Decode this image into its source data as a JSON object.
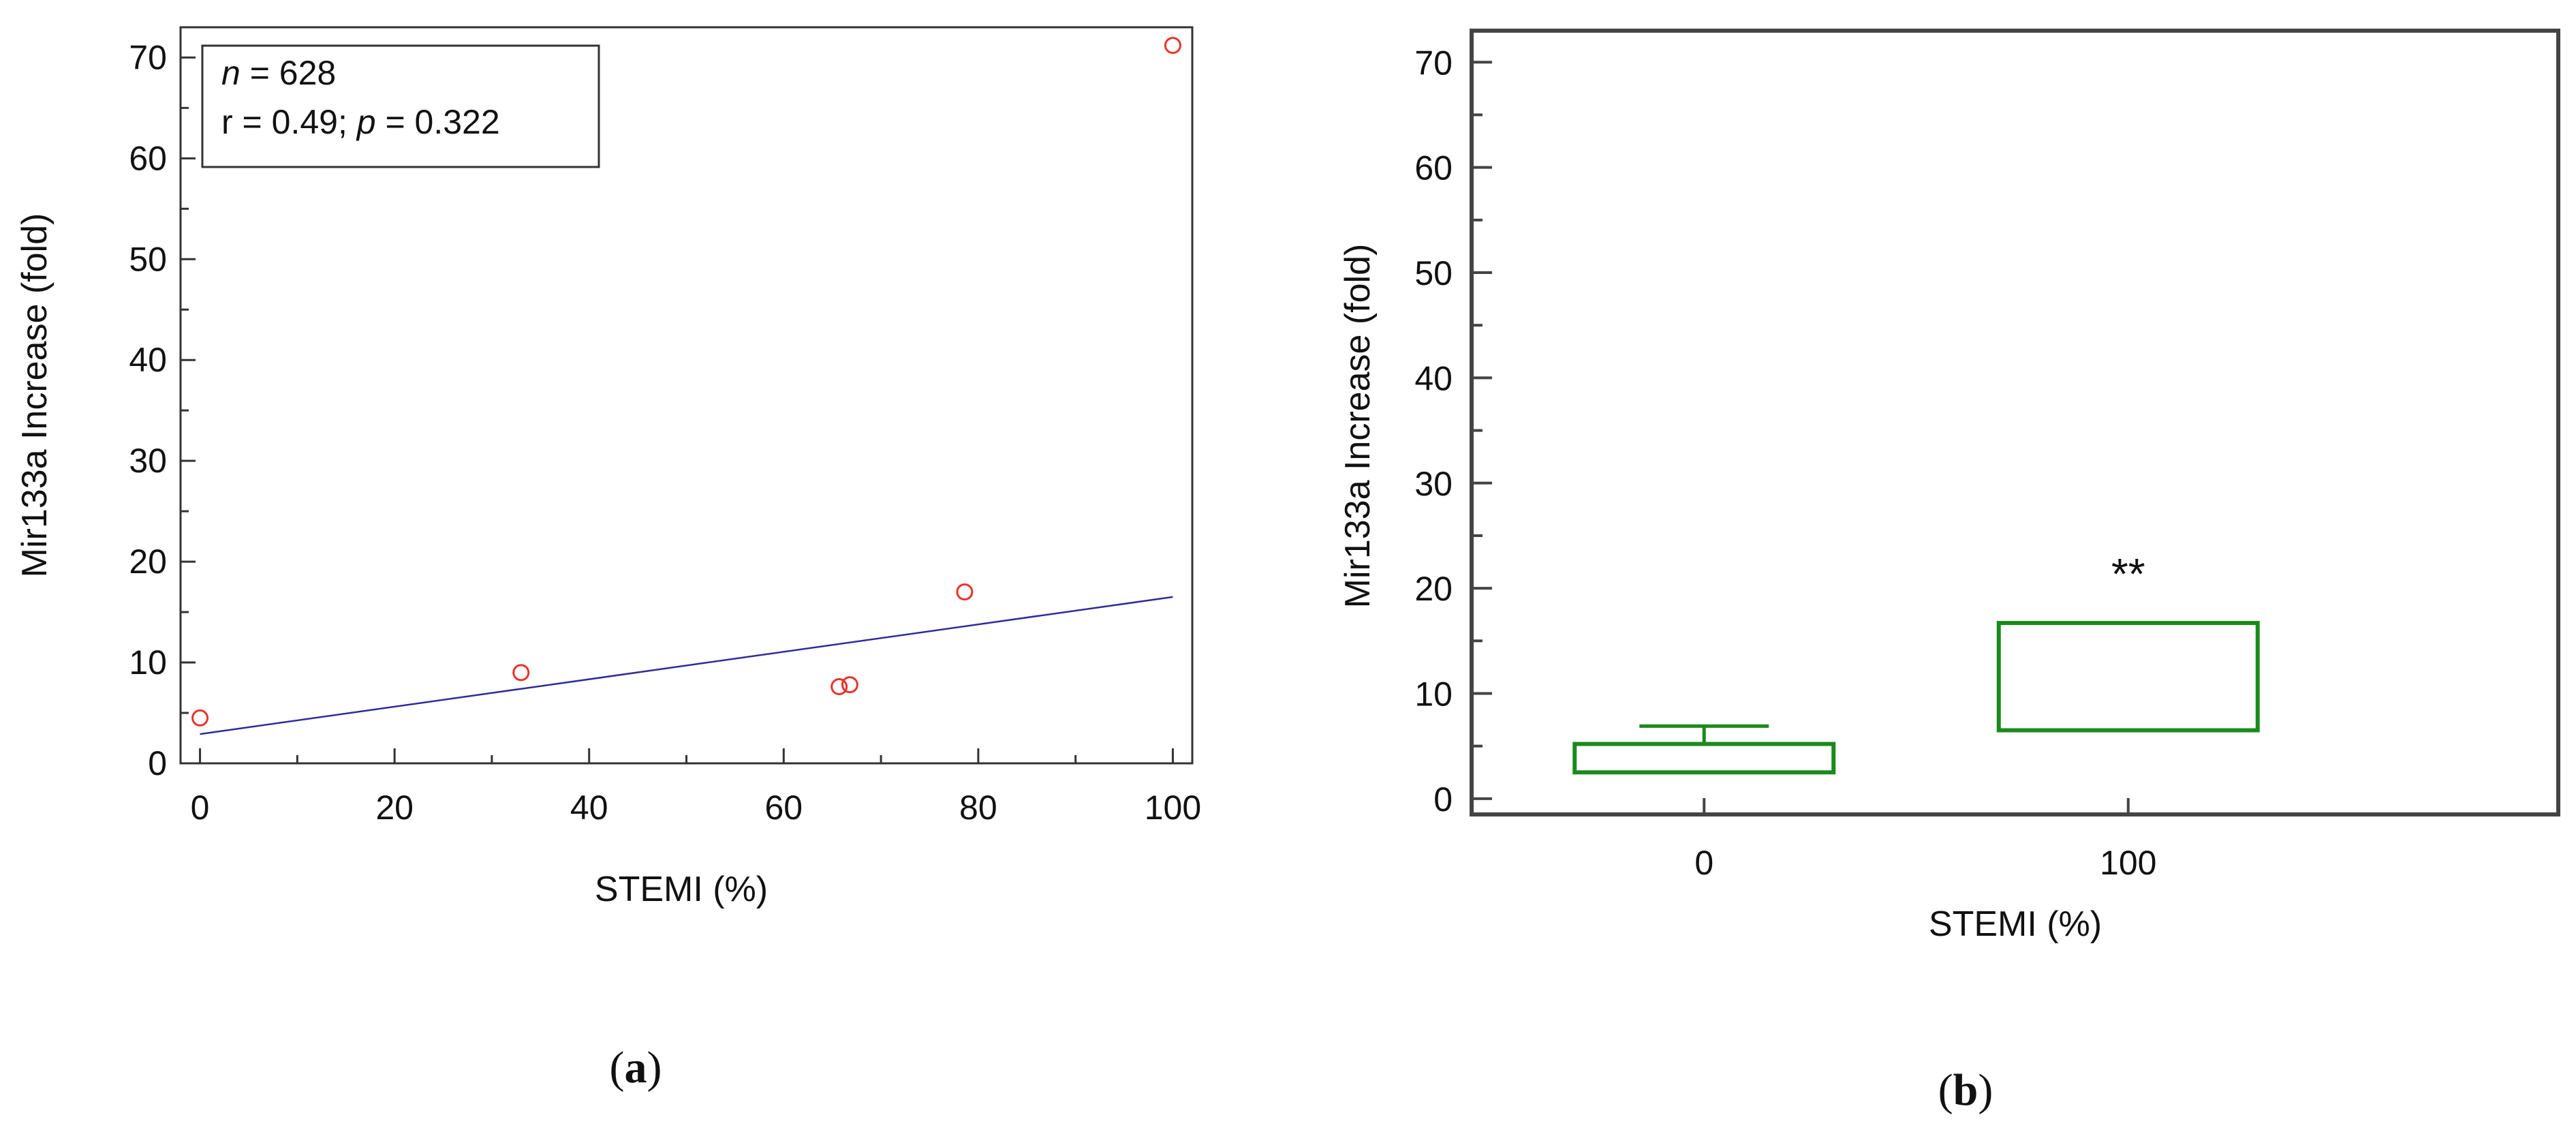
{
  "chart_data": [
    {
      "type": "scatter",
      "panel_label": "a",
      "xlabel": "STEMI (%)",
      "ylabel": "Mir133a Increase (fold)",
      "xlim": [
        -2,
        102
      ],
      "ylim": [
        0,
        73
      ],
      "x_ticks": [
        0,
        20,
        40,
        60,
        80,
        100
      ],
      "y_ticks": [
        0,
        10,
        20,
        30,
        40,
        50,
        60,
        70
      ],
      "grid": false,
      "annotation": {
        "n_label": "n",
        "n_value": " = 628",
        "r_text": "r = 0.49; ",
        "p_label": "p",
        "p_value": " = 0.322",
        "placement": "top-left"
      },
      "points": [
        {
          "x": 0,
          "y": 4.5
        },
        {
          "x": 33,
          "y": 9.0
        },
        {
          "x": 65.7,
          "y": 7.6
        },
        {
          "x": 66.8,
          "y": 7.8
        },
        {
          "x": 78.6,
          "y": 17.0
        },
        {
          "x": 100,
          "y": 71.2
        }
      ],
      "fit_line": {
        "x": [
          0,
          100
        ],
        "y": [
          2.9,
          16.5
        ]
      },
      "colors": {
        "points": "#e8332a",
        "fit_line": "#2c2c9c",
        "axes": "#333333"
      }
    },
    {
      "type": "box",
      "panel_label": "b",
      "xlabel": "STEMI (%)",
      "ylabel": "Mir133a Increase (fold)",
      "categories": [
        "0",
        "100"
      ],
      "ylim": [
        -1.5,
        73
      ],
      "y_ticks": [
        0,
        10,
        20,
        30,
        40,
        50,
        60,
        70
      ],
      "grid": false,
      "boxes": [
        {
          "category": "0",
          "q1": 2.5,
          "q3": 5.2,
          "whisker_high": 6.9
        },
        {
          "category": "100",
          "q1": 6.5,
          "q3": 16.7
        }
      ],
      "significance": {
        "category": "100",
        "text": "**",
        "y": 21.5
      },
      "colors": {
        "boxes": "#1a8a1a",
        "axes": "#444444"
      }
    }
  ]
}
